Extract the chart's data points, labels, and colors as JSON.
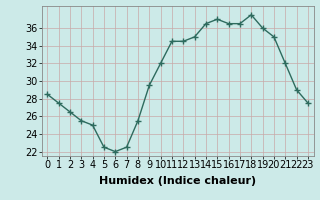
{
  "x": [
    0,
    1,
    2,
    3,
    4,
    5,
    6,
    7,
    8,
    9,
    10,
    11,
    12,
    13,
    14,
    15,
    16,
    17,
    18,
    19,
    20,
    21,
    22,
    23
  ],
  "y": [
    28.5,
    27.5,
    26.5,
    25.5,
    25.0,
    22.5,
    22.0,
    22.5,
    25.5,
    29.5,
    32.0,
    34.5,
    34.5,
    35.0,
    36.5,
    37.0,
    36.5,
    36.5,
    37.5,
    36.0,
    35.0,
    32.0,
    29.0,
    27.5
  ],
  "xlabel": "Humidex (Indice chaleur)",
  "ylabel": "",
  "xlim": [
    -0.5,
    23.5
  ],
  "ylim": [
    21.5,
    38.5
  ],
  "yticks": [
    22,
    24,
    26,
    28,
    30,
    32,
    34,
    36
  ],
  "xticks": [
    0,
    1,
    2,
    3,
    4,
    5,
    6,
    7,
    8,
    9,
    10,
    11,
    12,
    13,
    14,
    15,
    16,
    17,
    18,
    19,
    20,
    21,
    22,
    23
  ],
  "line_color": "#2e6b5e",
  "marker": "+",
  "bg_color": "#cceae8",
  "grid_color_v": "#c8a8a8",
  "grid_color_h": "#c8a8a8",
  "xlabel_fontsize": 8,
  "tick_fontsize": 7
}
